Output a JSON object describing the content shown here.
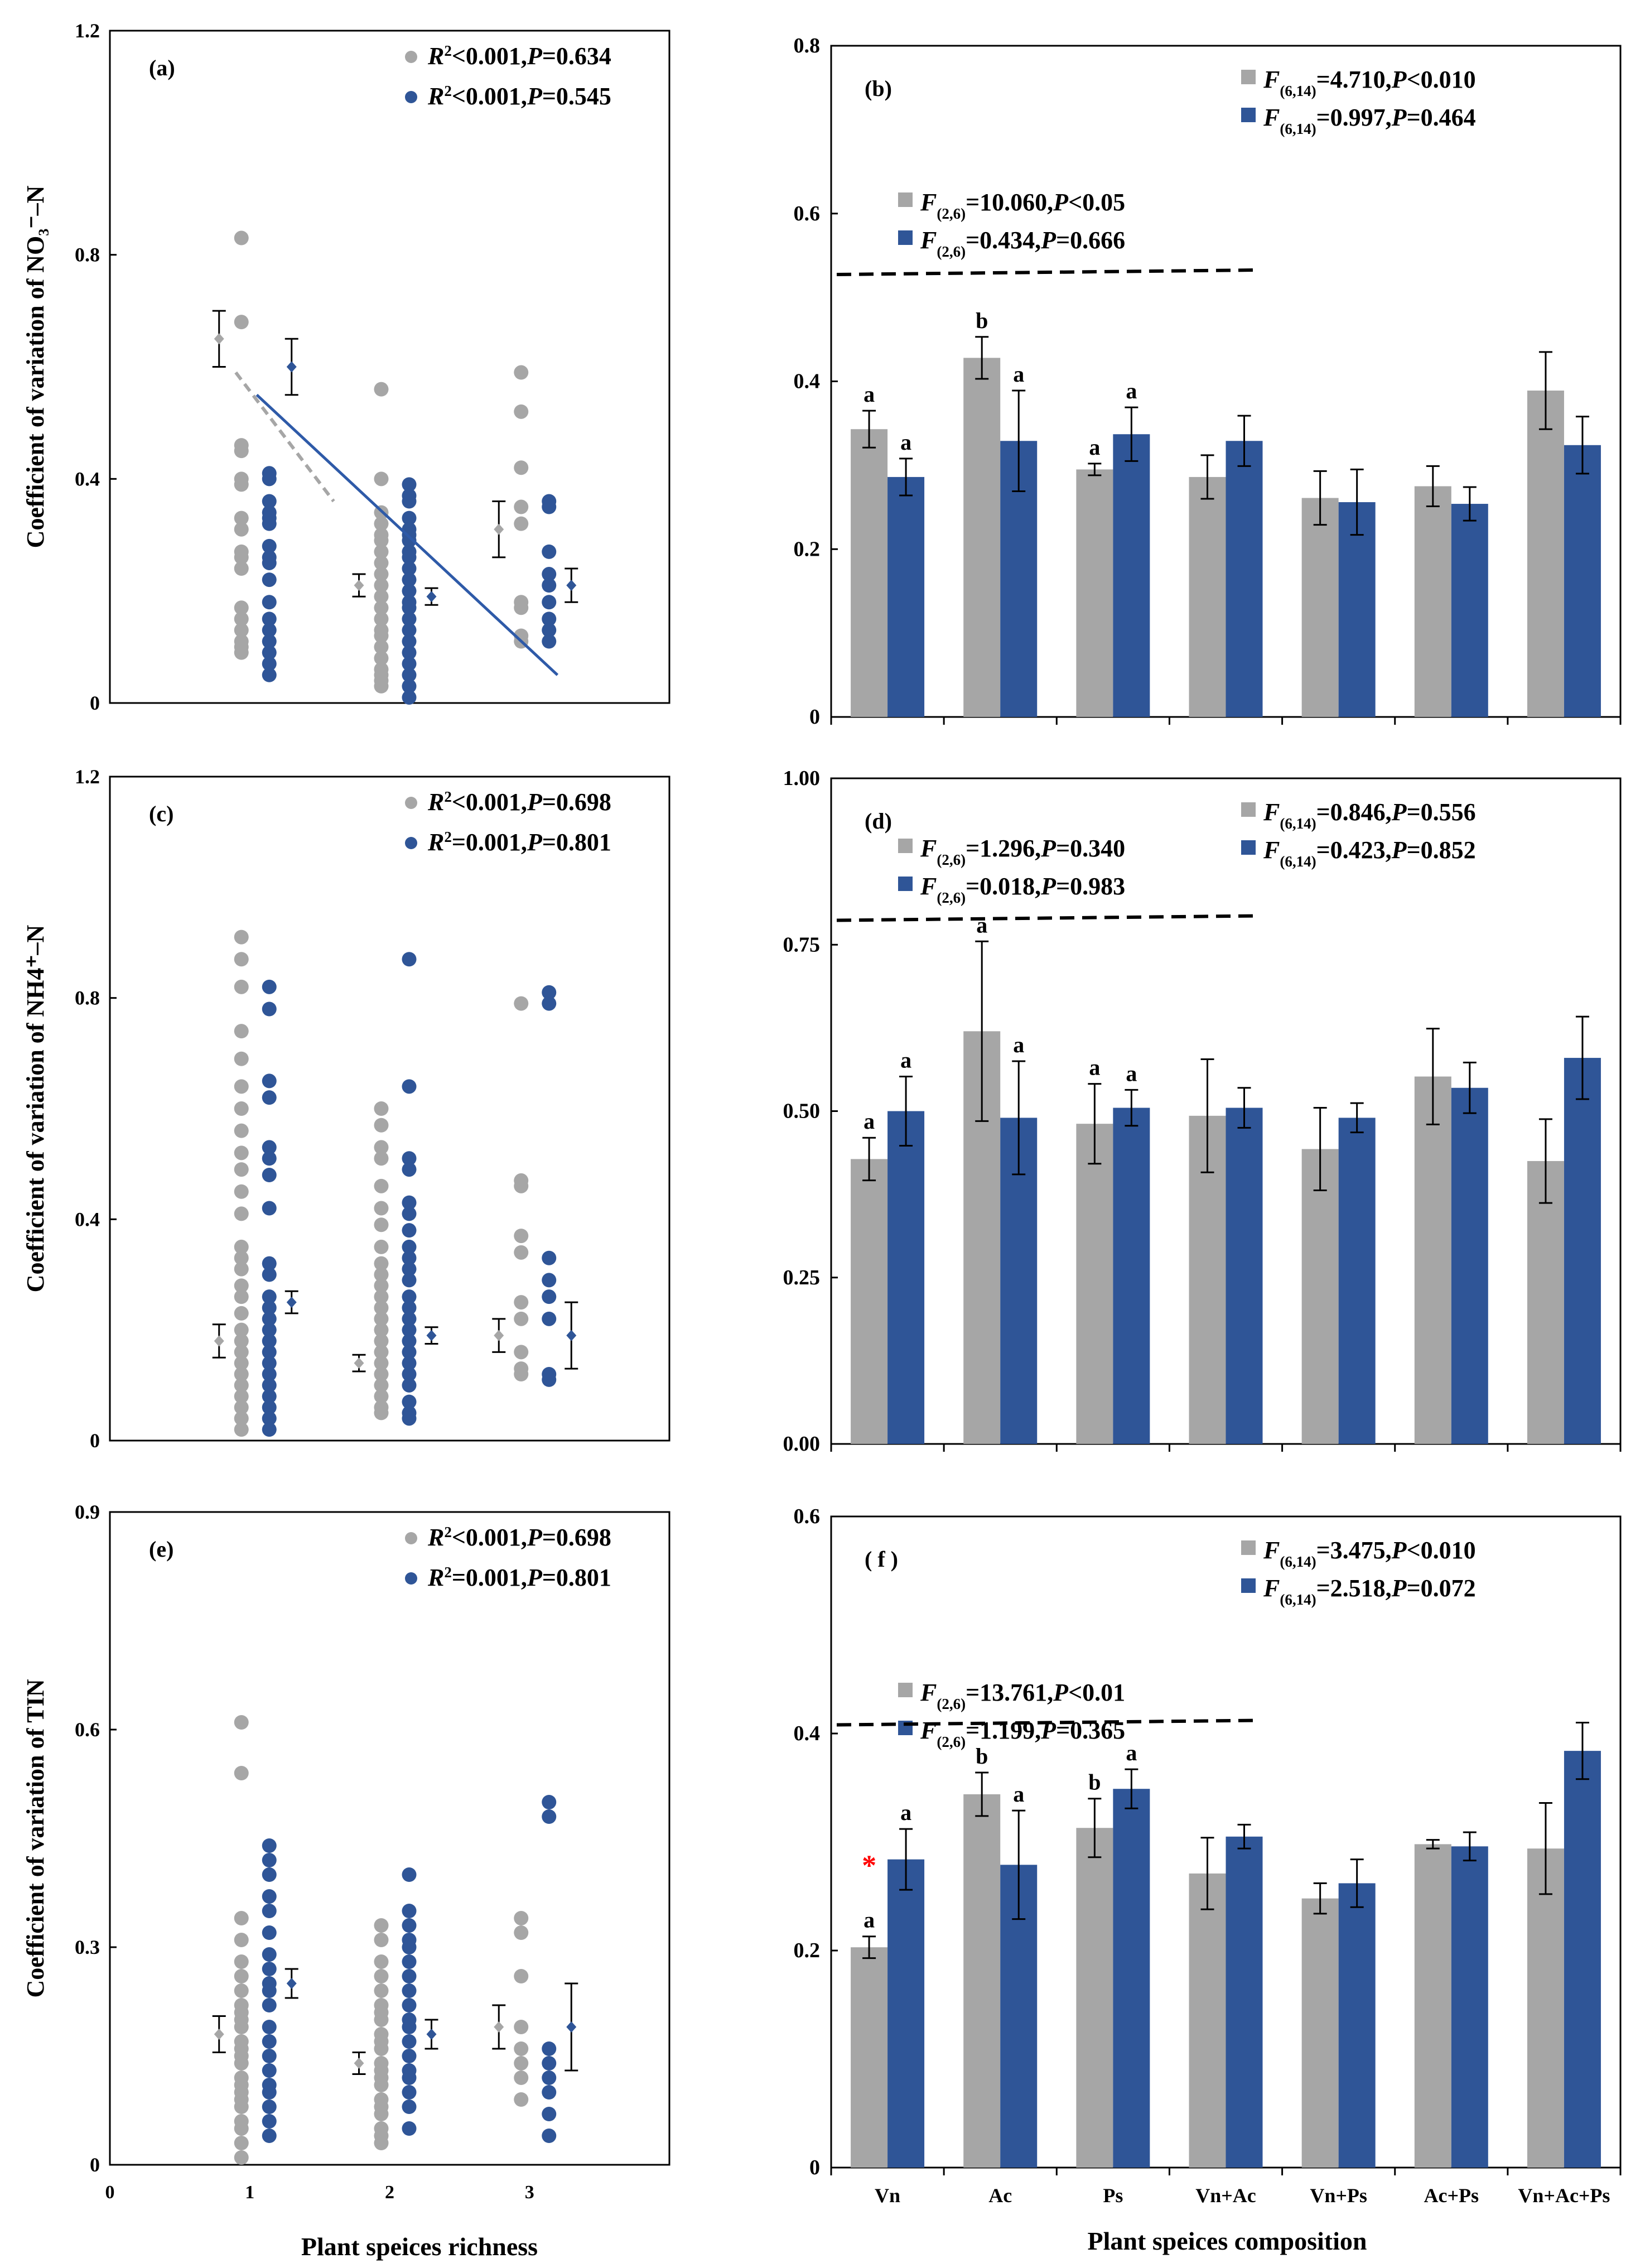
{
  "figure": {
    "xlabel_left": "Plant speices richness",
    "xlabel_right": "Plant speices composition",
    "richness_ticks": [
      "0",
      "1",
      "2",
      "3"
    ],
    "categories": [
      "Vn",
      "Ac",
      "Ps",
      "Vn+Ac",
      "Vn+Ps",
      "Ac+Ps",
      "Vn+Ac+Ps"
    ],
    "colors": {
      "gray": "#A6A6A6",
      "blue": "#2F5597",
      "line": "#2E5AA8",
      "dash": "#A6A6A6",
      "star": "#FF0000"
    }
  },
  "chart_data": [
    {
      "id": "a",
      "type": "scatter",
      "label": "(a)",
      "ylabel": "Coefficient of variation of  NO₃⁻–N",
      "ylim": [
        0,
        1.2
      ],
      "yticks": [
        "0",
        "0.4",
        "0.8",
        "1.2"
      ],
      "legend": [
        {
          "series": "gray",
          "parts": [
            "R",
            "2",
            "<0.001,",
            "P",
            "=0.634"
          ]
        },
        {
          "series": "blue",
          "parts": [
            "R",
            "2",
            "<0.001,",
            "P",
            "=0.545"
          ]
        }
      ],
      "series": [
        {
          "name": "gray",
          "richness": [
            1,
            2,
            3
          ],
          "mean": [
            0.65,
            0.21,
            0.31
          ],
          "err": [
            0.05,
            0.02,
            0.05
          ],
          "points": [
            [
              0.83,
              0.68,
              0.46,
              0.45,
              0.4,
              0.39,
              0.33,
              0.31,
              0.27,
              0.26,
              0.24,
              0.17,
              0.15,
              0.13,
              0.11,
              0.1,
              0.09
            ],
            [
              0.56,
              0.4,
              0.34,
              0.32,
              0.3,
              0.29,
              0.27,
              0.25,
              0.23,
              0.21,
              0.19,
              0.17,
              0.15,
              0.13,
              0.12,
              0.1,
              0.08,
              0.06,
              0.05,
              0.04,
              0.03
            ],
            [
              0.59,
              0.52,
              0.42,
              0.35,
              0.32,
              0.18,
              0.17,
              0.12,
              0.11
            ]
          ]
        },
        {
          "name": "blue",
          "richness": [
            1,
            2,
            3
          ],
          "mean": [
            0.6,
            0.19,
            0.21
          ],
          "err": [
            0.05,
            0.015,
            0.03
          ],
          "points": [
            [
              0.41,
              0.4,
              0.36,
              0.34,
              0.33,
              0.32,
              0.28,
              0.26,
              0.25,
              0.22,
              0.18,
              0.15,
              0.13,
              0.11,
              0.09,
              0.07,
              0.05
            ],
            [
              0.39,
              0.37,
              0.36,
              0.33,
              0.31,
              0.3,
              0.29,
              0.27,
              0.26,
              0.24,
              0.22,
              0.2,
              0.18,
              0.17,
              0.15,
              0.13,
              0.11,
              0.09,
              0.07,
              0.05,
              0.03,
              0.01
            ],
            [
              0.36,
              0.35,
              0.27,
              0.23,
              0.21,
              0.18,
              0.15,
              0.13,
              0.11
            ]
          ]
        }
      ],
      "fit_lines": [
        {
          "series": "gray",
          "style": "dashed",
          "x": [
            0.9,
            1.6
          ],
          "y": [
            0.59,
            0.36
          ]
        },
        {
          "series": "blue",
          "style": "solid",
          "x": [
            1.05,
            3.2
          ],
          "y": [
            0.55,
            0.05
          ]
        }
      ]
    },
    {
      "id": "b",
      "type": "bar",
      "label": "(b)",
      "ylim": [
        0,
        0.8
      ],
      "yticks": [
        "0",
        "0.2",
        "0.4",
        "0.6",
        "0.8"
      ],
      "legend_all": [
        {
          "series": "gray",
          "parts": [
            "F",
            "(6,14)",
            "=4.710,",
            "P",
            "<0.010"
          ]
        },
        {
          "series": "blue",
          "parts": [
            "F",
            "(6,14)",
            "=0.997,",
            "P",
            "=0.464"
          ]
        }
      ],
      "legend_mono": [
        {
          "series": "gray",
          "parts": [
            "F",
            "(2,6)",
            "=10.060,",
            "P",
            "<0.05"
          ]
        },
        {
          "series": "blue",
          "parts": [
            "F",
            "(2,6)",
            "=0.434,",
            "P",
            "=0.666"
          ]
        }
      ],
      "dash_y": 0.53,
      "series": [
        {
          "name": "gray",
          "values": [
            0.343,
            0.428,
            0.295,
            0.286,
            0.261,
            0.275,
            0.389
          ],
          "err": [
            0.022,
            0.025,
            0.007,
            0.026,
            0.032,
            0.024,
            0.046
          ]
        },
        {
          "name": "blue",
          "values": [
            0.286,
            0.329,
            0.337,
            0.329,
            0.256,
            0.254,
            0.324
          ],
          "err": [
            0.022,
            0.06,
            0.032,
            0.03,
            0.039,
            0.02,
            0.034
          ]
        }
      ],
      "letters": {
        "gray": [
          "a",
          "b",
          "a",
          "",
          "",
          "",
          ""
        ],
        "blue": [
          "a",
          "a",
          "a",
          "",
          "",
          "",
          ""
        ]
      },
      "star": [
        false,
        false,
        false,
        false,
        false,
        false,
        false
      ]
    },
    {
      "id": "c",
      "type": "scatter",
      "label": "(c)",
      "ylabel": "Coefficient of variation of  NH4⁺–N",
      "ylim": [
        0,
        1.2
      ],
      "yticks": [
        "0",
        "0.4",
        "0.8",
        "1.2"
      ],
      "legend": [
        {
          "series": "gray",
          "parts": [
            "R",
            "2",
            "<0.001,",
            "P",
            "=0.698"
          ]
        },
        {
          "series": "blue",
          "parts": [
            "R",
            "2",
            "=0.001,",
            "P",
            "=0.801"
          ]
        }
      ],
      "series": [
        {
          "name": "gray",
          "richness": [
            1,
            2,
            3
          ],
          "mean": [
            0.18,
            0.14,
            0.19
          ],
          "err": [
            0.03,
            0.015,
            0.03
          ],
          "points": [
            [
              0.91,
              0.87,
              0.82,
              0.74,
              0.69,
              0.64,
              0.6,
              0.56,
              0.52,
              0.49,
              0.45,
              0.41,
              0.35,
              0.33,
              0.31,
              0.28,
              0.26,
              0.23,
              0.2,
              0.18,
              0.16,
              0.14,
              0.12,
              0.1,
              0.08,
              0.06,
              0.04,
              0.02
            ],
            [
              0.6,
              0.57,
              0.53,
              0.51,
              0.46,
              0.42,
              0.39,
              0.35,
              0.32,
              0.3,
              0.28,
              0.26,
              0.24,
              0.22,
              0.2,
              0.18,
              0.16,
              0.14,
              0.12,
              0.1,
              0.08,
              0.06,
              0.05
            ],
            [
              0.79,
              0.47,
              0.46,
              0.37,
              0.34,
              0.25,
              0.22,
              0.16,
              0.13,
              0.12
            ]
          ]
        },
        {
          "name": "blue",
          "richness": [
            1,
            2,
            3
          ],
          "mean": [
            0.25,
            0.19,
            0.19
          ],
          "err": [
            0.02,
            0.015,
            0.06
          ],
          "points": [
            [
              0.82,
              0.78,
              0.65,
              0.62,
              0.53,
              0.51,
              0.48,
              0.42,
              0.32,
              0.3,
              0.26,
              0.24,
              0.22,
              0.2,
              0.18,
              0.16,
              0.14,
              0.12,
              0.1,
              0.08,
              0.06,
              0.04,
              0.02
            ],
            [
              0.87,
              0.64,
              0.51,
              0.49,
              0.43,
              0.41,
              0.38,
              0.35,
              0.33,
              0.31,
              0.29,
              0.26,
              0.24,
              0.22,
              0.2,
              0.18,
              0.16,
              0.14,
              0.12,
              0.1,
              0.07,
              0.05,
              0.04
            ],
            [
              0.81,
              0.79,
              0.33,
              0.29,
              0.26,
              0.22,
              0.12,
              0.11
            ]
          ]
        }
      ]
    },
    {
      "id": "d",
      "type": "bar",
      "label": "(d)",
      "ylim": [
        0,
        1.0
      ],
      "yticks": [
        "0.00",
        "0.25",
        "0.50",
        "0.75",
        "1.00"
      ],
      "legend_all": [
        {
          "series": "gray",
          "parts": [
            "F",
            "(6,14)",
            "=0.846,",
            "P",
            "=0.556"
          ]
        },
        {
          "series": "blue",
          "parts": [
            "F",
            "(6,14)",
            "=0.423,",
            "P",
            "=0.852"
          ]
        }
      ],
      "legend_mono": [
        {
          "series": "gray",
          "parts": [
            "F",
            "(2,6)",
            "=1.296,",
            "P",
            "=0.340"
          ]
        },
        {
          "series": "blue",
          "parts": [
            "F",
            "(2,6)",
            "=0.018,",
            "P",
            "=0.983"
          ]
        }
      ],
      "dash_y": 0.79,
      "series": [
        {
          "name": "gray",
          "values": [
            0.428,
            0.62,
            0.481,
            0.493,
            0.443,
            0.552,
            0.425
          ],
          "err": [
            0.032,
            0.135,
            0.06,
            0.085,
            0.062,
            0.072,
            0.063
          ]
        },
        {
          "name": "blue",
          "values": [
            0.5,
            0.49,
            0.505,
            0.505,
            0.49,
            0.535,
            0.58
          ],
          "err": [
            0.052,
            0.085,
            0.027,
            0.03,
            0.022,
            0.038,
            0.062
          ]
        }
      ],
      "letters": {
        "gray": [
          "a",
          "a",
          "a",
          "",
          "",
          "",
          ""
        ],
        "blue": [
          "a",
          "a",
          "a",
          "",
          "",
          "",
          ""
        ]
      },
      "star": [
        false,
        false,
        false,
        false,
        false,
        false,
        false
      ]
    },
    {
      "id": "e",
      "type": "scatter",
      "label": "(e)",
      "ylabel": "Coefficient of variation of  TIN",
      "ylim": [
        0,
        0.9
      ],
      "yticks": [
        "0",
        "0.3",
        "0.6",
        "0.9"
      ],
      "legend": [
        {
          "series": "gray",
          "parts": [
            "R",
            "2",
            "<0.001,",
            "P",
            "=0.698"
          ]
        },
        {
          "series": "blue",
          "parts": [
            "R",
            "2",
            "=0.001,",
            "P",
            "=0.801"
          ]
        }
      ],
      "series": [
        {
          "name": "gray",
          "richness": [
            1,
            2,
            3
          ],
          "mean": [
            0.18,
            0.14,
            0.19
          ],
          "err": [
            0.025,
            0.015,
            0.03
          ],
          "points": [
            [
              0.61,
              0.54,
              0.34,
              0.31,
              0.28,
              0.26,
              0.24,
              0.22,
              0.21,
              0.2,
              0.19,
              0.17,
              0.16,
              0.15,
              0.14,
              0.12,
              0.11,
              0.1,
              0.09,
              0.08,
              0.06,
              0.05,
              0.03,
              0.01
            ],
            [
              0.33,
              0.31,
              0.28,
              0.26,
              0.24,
              0.22,
              0.21,
              0.2,
              0.18,
              0.17,
              0.16,
              0.14,
              0.13,
              0.12,
              0.11,
              0.09,
              0.08,
              0.07,
              0.05,
              0.04,
              0.03
            ],
            [
              0.34,
              0.32,
              0.26,
              0.19,
              0.16,
              0.14,
              0.12,
              0.09
            ]
          ]
        },
        {
          "name": "blue",
          "richness": [
            1,
            2,
            3
          ],
          "mean": [
            0.25,
            0.18,
            0.19
          ],
          "err": [
            0.02,
            0.02,
            0.06
          ],
          "points": [
            [
              0.44,
              0.42,
              0.4,
              0.37,
              0.35,
              0.32,
              0.29,
              0.27,
              0.25,
              0.24,
              0.22,
              0.19,
              0.17,
              0.15,
              0.13,
              0.11,
              0.1,
              0.08,
              0.06,
              0.04
            ],
            [
              0.4,
              0.35,
              0.33,
              0.31,
              0.3,
              0.28,
              0.26,
              0.24,
              0.22,
              0.2,
              0.19,
              0.17,
              0.15,
              0.13,
              0.12,
              0.1,
              0.08,
              0.05
            ],
            [
              0.5,
              0.48,
              0.16,
              0.14,
              0.12,
              0.1,
              0.07,
              0.04
            ]
          ]
        }
      ]
    },
    {
      "id": "f",
      "type": "bar",
      "label": "( f )",
      "ylim": [
        0,
        0.6
      ],
      "yticks": [
        "0",
        "0.2",
        "0.4",
        "0.6"
      ],
      "legend_all": [
        {
          "series": "gray",
          "parts": [
            "F",
            "(6,14)",
            "=3.475,",
            "P",
            "<0.010"
          ]
        },
        {
          "series": "blue",
          "parts": [
            "F",
            "(6,14)",
            "=2.518,",
            "P",
            "=0.072"
          ]
        }
      ],
      "legend_mono": [
        {
          "series": "gray",
          "parts": [
            "F",
            "(2,6)",
            "=13.761,",
            "P",
            "<0.01"
          ]
        },
        {
          "series": "blue",
          "parts": [
            "F",
            "(2,6)",
            "=1.199,",
            "P",
            "=0.365"
          ]
        }
      ],
      "dash_y": 0.41,
      "series": [
        {
          "name": "gray",
          "values": [
            0.203,
            0.344,
            0.313,
            0.271,
            0.248,
            0.298,
            0.294
          ],
          "err": [
            0.01,
            0.02,
            0.027,
            0.033,
            0.014,
            0.004,
            0.042
          ]
        },
        {
          "name": "blue",
          "values": [
            0.284,
            0.279,
            0.349,
            0.305,
            0.262,
            0.296,
            0.384
          ],
          "err": [
            0.028,
            0.05,
            0.018,
            0.011,
            0.022,
            0.013,
            0.026
          ]
        }
      ],
      "letters": {
        "gray": [
          "a",
          "b",
          "b",
          "",
          "",
          "",
          ""
        ],
        "blue": [
          "a",
          "a",
          "a",
          "",
          "",
          "",
          ""
        ]
      },
      "star": [
        true,
        false,
        false,
        false,
        false,
        false,
        false
      ]
    }
  ]
}
